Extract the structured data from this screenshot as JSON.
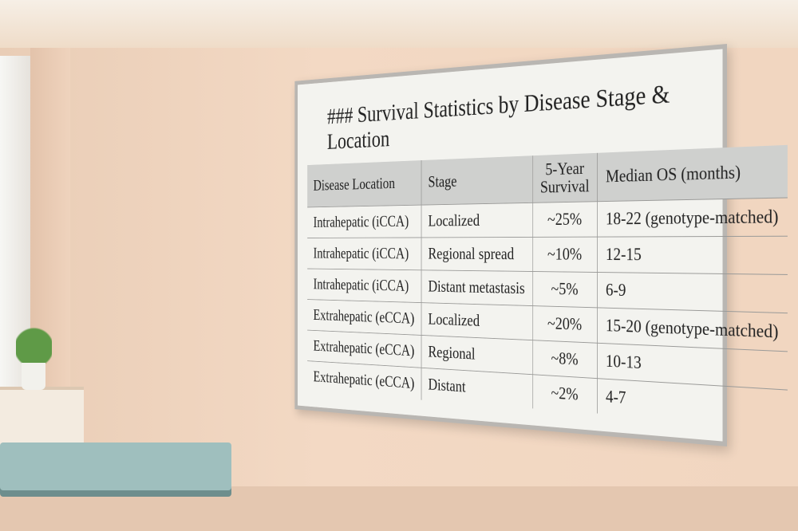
{
  "board": {
    "title": "### Survival Statistics by Disease Stage & Location",
    "table": {
      "header": [
        "Disease Location",
        "Stage",
        "5-Year Survival",
        "Median OS (months)"
      ],
      "rows": [
        [
          "Intrahepatic (iCCA)",
          "Localized",
          "~25%",
          "18-22 (genotype-matched)"
        ],
        [
          "Intrahepatic (iCCA)",
          "Regional spread",
          "~10%",
          "12-15"
        ],
        [
          "Intrahepatic (iCCA)",
          "Distant metastasis",
          "~5%",
          "6-9"
        ],
        [
          "Extrahepatic (eCCA)",
          "Localized",
          "~20%",
          "15-20 (genotype-matched)"
        ],
        [
          "Extrahepatic (eCCA)",
          "Regional",
          "~8%",
          "10-13"
        ],
        [
          "Extrahepatic (eCCA)",
          "Distant",
          "~2%",
          "4-7"
        ]
      ]
    }
  }
}
